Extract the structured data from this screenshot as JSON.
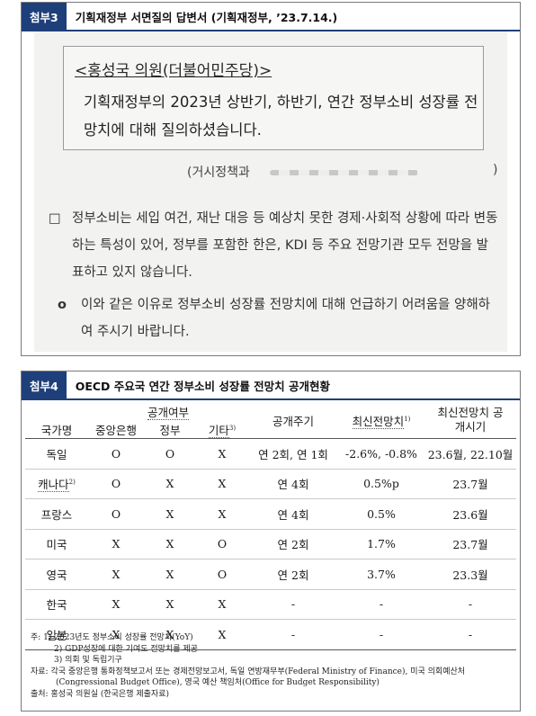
{
  "panel1": {
    "badge": "첨부3",
    "title": "기획재정부 서면질의 답변서 (기획재정부, ’23.7.14.)",
    "question_heading": "<홍성국 의원(더불어민주당)>",
    "question_text": "기획재정부의 2023년 상반기, 하반기, 연간 정부소비 성장률 전망치에 대해 질의하셨습니다.",
    "byline_open": "(거시정책과",
    "byline_close": ")",
    "para1_marker": "□",
    "para1": "정부소비는 세입 여건, 재난 대응 등 예상치 못한 경제·사회적 상황에 따라 변동하는 특성이 있어, 정부를 포함한 한은, KDI 등 주요 전망기관 모두 전망을 발표하고 있지 않습니다.",
    "para2_marker": "o",
    "para2": "이와 같은 이유로 정부소비 성장률 전망치에 대해 언급하기 어려움을 양해하여 주시기 바랍니다."
  },
  "panel2": {
    "badge": "첨부4",
    "title": "OECD 주요국 연간 정부소비 성장률 전망치 공개현황",
    "headers": {
      "country": "국가명",
      "disclosure": "공개여부",
      "central_bank": "중앙은행",
      "government": "정부",
      "others": "기타",
      "others_sup": "3)",
      "cycle": "공개주기",
      "latest": "최신전망치",
      "latest_sup": "1)",
      "latest_time": "최신전망치 공개시기"
    },
    "rows": [
      {
        "country": "독일",
        "sup": "",
        "cb": "O",
        "gov": "O",
        "etc": "X",
        "cycle": "연 2회, 연 1회",
        "latest": "-2.6%, -0.8%",
        "time": "23.6월, 22.10월"
      },
      {
        "country": "캐나다",
        "sup": "2)",
        "cb": "O",
        "gov": "X",
        "etc": "X",
        "cycle": "연 4회",
        "latest": "0.5%p",
        "time": "23.7월"
      },
      {
        "country": "프랑스",
        "sup": "",
        "cb": "O",
        "gov": "X",
        "etc": "X",
        "cycle": "연 4회",
        "latest": "0.5%",
        "time": "23.6월"
      },
      {
        "country": "미국",
        "sup": "",
        "cb": "X",
        "gov": "X",
        "etc": "O",
        "cycle": "연 2회",
        "latest": "1.7%",
        "time": "23.7월"
      },
      {
        "country": "영국",
        "sup": "",
        "cb": "X",
        "gov": "X",
        "etc": "O",
        "cycle": "연 2회",
        "latest": "3.7%",
        "time": "23.3월"
      },
      {
        "country": "한국",
        "sup": "",
        "cb": "X",
        "gov": "X",
        "etc": "X",
        "cycle": "-",
        "latest": "-",
        "time": "-"
      },
      {
        "country": "일본",
        "sup": "",
        "cb": "X",
        "gov": "X",
        "etc": "X",
        "cycle": "-",
        "latest": "-",
        "time": "-"
      }
    ],
    "notes": [
      "주: 1) 2023년도 정부소비 성장률 전망치(YoY)",
      "2) GDP성장에 대한 기여도 전망치를 제공",
      "3) 의회 및 독립기구",
      "자료: 각국 중앙은행 통화정책보고서 또는 경제전망보고서, 독일 연방재무부(Federal Ministry of Finance), 미국 의회예산처(Congressional Budget Office), 영국 예산 책임처(Office for Budget Responsibility)",
      "출처: 홍성국 의원실 (한국은행 제출자료)"
    ]
  }
}
